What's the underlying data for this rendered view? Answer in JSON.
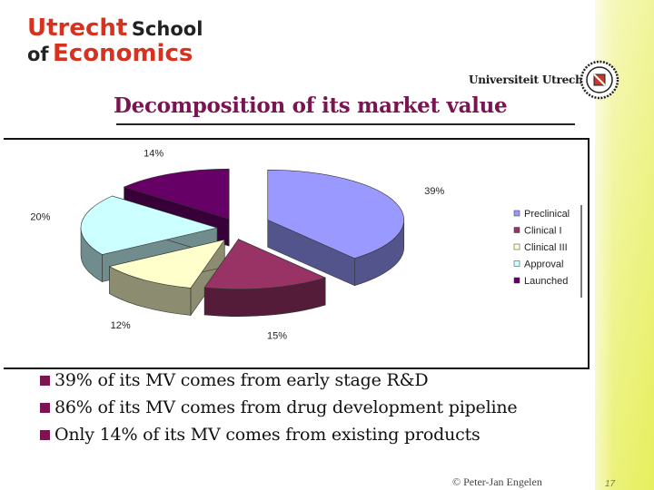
{
  "logo": {
    "line1_big": "Utrecht",
    "line1_small": "School",
    "line2_small": "of",
    "line2_big": "Economics"
  },
  "university": "Universiteit Utrecht",
  "title": "Decomposition of its market value",
  "chart_data": {
    "type": "pie",
    "categories": [
      "Preclinical",
      "Clinical I",
      "Clinical III",
      "Approval",
      "Launched"
    ],
    "values": [
      39,
      15,
      12,
      20,
      14
    ],
    "labels": [
      "39%",
      "15%",
      "12%",
      "20%",
      "14%"
    ],
    "colors": [
      "#9999ff",
      "#993366",
      "#ffffcc",
      "#ccffff",
      "#660066"
    ],
    "legend_position": "right"
  },
  "bullets": [
    "39% of its MV comes from early stage R&D",
    "86% of its MV comes from drug development pipeline",
    "Only 14% of its MV comes from existing products"
  ],
  "footer": {
    "copyright": "© Peter-Jan Engelen",
    "page": "17"
  }
}
